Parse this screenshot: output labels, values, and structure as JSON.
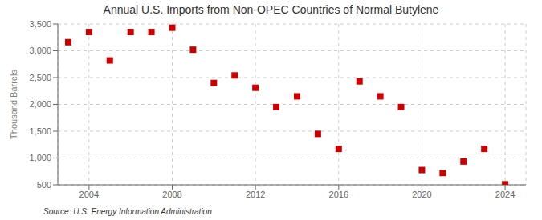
{
  "chart_data": {
    "type": "scatter",
    "title": "Annual U.S. Imports from Non-OPEC Countries of Normal Butylene",
    "ylabel": "Thousand Barrels",
    "annotation": "Source: U.S. Energy Information Administration",
    "x": [
      2003,
      2004,
      2005,
      2006,
      2007,
      2008,
      2009,
      2010,
      2011,
      2012,
      2013,
      2014,
      2015,
      2016,
      2017,
      2018,
      2019,
      2020,
      2021,
      2022,
      2023,
      2024
    ],
    "values": [
      3160,
      3350,
      2820,
      3350,
      3350,
      3430,
      3020,
      2400,
      2540,
      2310,
      1950,
      2150,
      1450,
      1170,
      2430,
      2150,
      1950,
      775,
      720,
      935,
      1170,
      510
    ],
    "color": "#cc0000",
    "marker": "square",
    "xlim": [
      2002.5,
      2025
    ],
    "xticks": [
      2004,
      2008,
      2012,
      2016,
      2020,
      2024
    ],
    "ylim": [
      500,
      3500
    ],
    "yticks": [
      500,
      {
        "value": 1000,
        "label": "1,000"
      },
      {
        "value": 1500,
        "label": "1,500"
      },
      {
        "value": 2000,
        "label": "2,000"
      },
      {
        "value": 2500,
        "label": "2,500"
      },
      {
        "value": 3000,
        "label": "3,000"
      },
      {
        "value": 3500,
        "label": "3,500"
      }
    ],
    "grid": true
  }
}
